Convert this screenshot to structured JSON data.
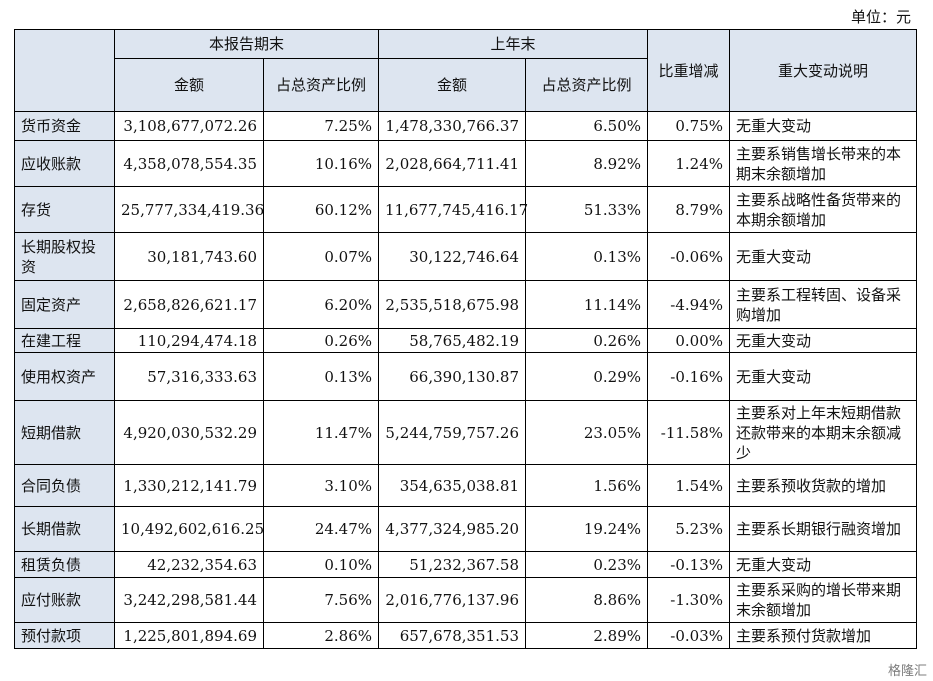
{
  "unit_label": "单位：元",
  "headers": {
    "current_period": "本报告期末",
    "prior_year": "上年末",
    "amount": "金额",
    "ratio": "占总资产比例",
    "change": "比重增减",
    "explanation": "重大变动说明"
  },
  "rows": [
    {
      "name": "货币资金",
      "cur_amt": "3,108,677,072.26",
      "cur_pct": "7.25%",
      "prev_amt": "1,478,330,766.37",
      "prev_pct": "6.50%",
      "change": "0.75%",
      "note": "无重大变动"
    },
    {
      "name": "应收账款",
      "cur_amt": "4,358,078,554.35",
      "cur_pct": "10.16%",
      "prev_amt": "2,028,664,711.41",
      "prev_pct": "8.92%",
      "change": "1.24%",
      "note": "主要系销售增长带来的本期末余额增加"
    },
    {
      "name": "存货",
      "cur_amt": "25,777,334,419.36",
      "cur_pct": "60.12%",
      "prev_amt": "11,677,745,416.17",
      "prev_pct": "51.33%",
      "change": "8.79%",
      "note": "主要系战略性备货带来的本期余额增加"
    },
    {
      "name": "长期股权投资",
      "cur_amt": "30,181,743.60",
      "cur_pct": "0.07%",
      "prev_amt": "30,122,746.64",
      "prev_pct": "0.13%",
      "change": "-0.06%",
      "note": "无重大变动"
    },
    {
      "name": "固定资产",
      "cur_amt": "2,658,826,621.17",
      "cur_pct": "6.20%",
      "prev_amt": "2,535,518,675.98",
      "prev_pct": "11.14%",
      "change": "-4.94%",
      "note": "主要系工程转固、设备采购增加"
    },
    {
      "name": "在建工程",
      "cur_amt": "110,294,474.18",
      "cur_pct": "0.26%",
      "prev_amt": "58,765,482.19",
      "prev_pct": "0.26%",
      "change": "0.00%",
      "note": "无重大变动"
    },
    {
      "name": "使用权资产",
      "cur_amt": "57,316,333.63",
      "cur_pct": "0.13%",
      "prev_amt": "66,390,130.87",
      "prev_pct": "0.29%",
      "change": "-0.16%",
      "note": "无重大变动"
    },
    {
      "name": "短期借款",
      "cur_amt": "4,920,030,532.29",
      "cur_pct": "11.47%",
      "prev_amt": "5,244,759,757.26",
      "prev_pct": "23.05%",
      "change": "-11.58%",
      "note": "主要系对上年末短期借款还款带来的本期末余额减少"
    },
    {
      "name": "合同负债",
      "cur_amt": "1,330,212,141.79",
      "cur_pct": "3.10%",
      "prev_amt": "354,635,038.81",
      "prev_pct": "1.56%",
      "change": "1.54%",
      "note": "主要系预收货款的增加"
    },
    {
      "name": "长期借款",
      "cur_amt": "10,492,602,616.25",
      "cur_pct": "24.47%",
      "prev_amt": "4,377,324,985.20",
      "prev_pct": "19.24%",
      "change": "5.23%",
      "note": "主要系长期银行融资增加"
    },
    {
      "name": "租赁负债",
      "cur_amt": "42,232,354.63",
      "cur_pct": "0.10%",
      "prev_amt": "51,232,367.58",
      "prev_pct": "0.23%",
      "change": "-0.13%",
      "note": "无重大变动"
    },
    {
      "name": "应付账款",
      "cur_amt": "3,242,298,581.44",
      "cur_pct": "7.56%",
      "prev_amt": "2,016,776,137.96",
      "prev_pct": "8.86%",
      "change": "-1.30%",
      "note": "主要系采购的增长带来期末余额增加"
    },
    {
      "name": "预付款项",
      "cur_amt": "1,225,801,894.69",
      "cur_pct": "2.86%",
      "prev_amt": "657,678,351.53",
      "prev_pct": "2.89%",
      "change": "-0.03%",
      "note": "主要系预付货款增加"
    }
  ],
  "watermark": "格隆汇"
}
